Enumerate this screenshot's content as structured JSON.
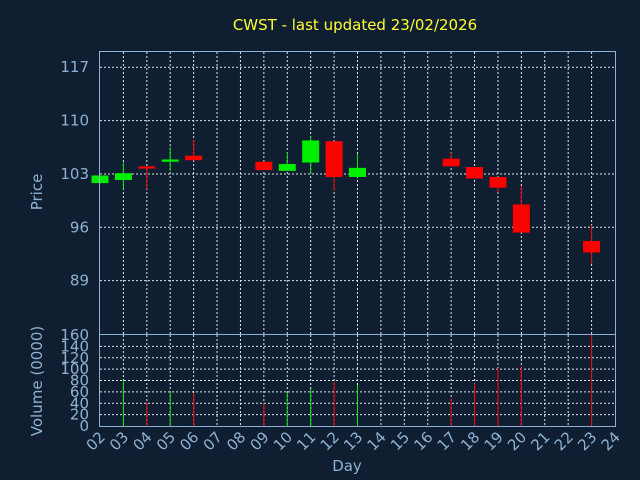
{
  "chart_data": {
    "type": "candlestick",
    "title": "CWST - last updated 23/02/2026",
    "colors": {
      "up": "#00ee00",
      "down": "#ff0000",
      "background": "#0f1e30",
      "text": "#8fb2d4",
      "title": "#ffff33",
      "grid": "#e0e6ee"
    },
    "price_panel": {
      "ylabel": "Price",
      "ylim": [
        82,
        119
      ],
      "yticks": [
        89,
        96,
        103,
        110,
        117
      ],
      "grid": true
    },
    "volume_panel": {
      "ylabel": "Volume (0000)",
      "ylim": [
        0,
        160
      ],
      "yticks": [
        0,
        20,
        40,
        60,
        80,
        100,
        120,
        140,
        160
      ],
      "grid": true
    },
    "xlabel": "Day",
    "x_ticks": [
      "02",
      "03",
      "04",
      "05",
      "06",
      "07",
      "08",
      "09",
      "10",
      "11",
      "12",
      "13",
      "14",
      "15",
      "16",
      "17",
      "18",
      "19",
      "20",
      "21",
      "22",
      "23",
      "24"
    ],
    "candles": [
      {
        "day": "02",
        "open": 101.8,
        "close": 102.8,
        "high": 102.8,
        "low": 101.8,
        "volume": 0
      },
      {
        "day": "03",
        "open": 102.2,
        "close": 103.1,
        "high": 104.5,
        "low": 101.0,
        "volume": 80
      },
      {
        "day": "04",
        "open": 104.0,
        "close": 103.7,
        "high": 104.0,
        "low": 101.0,
        "volume": 42
      },
      {
        "day": "05",
        "open": 104.6,
        "close": 104.9,
        "high": 106.5,
        "low": 103.4,
        "volume": 62
      },
      {
        "day": "06",
        "open": 105.4,
        "close": 104.8,
        "high": 107.5,
        "low": 104.8,
        "volume": 58
      },
      {
        "day": "09",
        "open": 104.6,
        "close": 103.5,
        "high": 104.6,
        "low": 103.5,
        "volume": 40
      },
      {
        "day": "10",
        "open": 103.4,
        "close": 104.3,
        "high": 105.8,
        "low": 103.4,
        "volume": 58
      },
      {
        "day": "11",
        "open": 104.5,
        "close": 107.4,
        "high": 108.0,
        "low": 103.0,
        "volume": 65
      },
      {
        "day": "12",
        "open": 107.3,
        "close": 102.6,
        "high": 107.3,
        "low": 100.8,
        "volume": 78
      },
      {
        "day": "13",
        "open": 102.6,
        "close": 103.8,
        "high": 105.6,
        "low": 102.6,
        "volume": 72
      },
      {
        "day": "17",
        "open": 105.0,
        "close": 104.0,
        "high": 105.8,
        "low": 104.0,
        "volume": 48
      },
      {
        "day": "18",
        "open": 103.9,
        "close": 102.4,
        "high": 103.9,
        "low": 102.4,
        "volume": 75
      },
      {
        "day": "19",
        "open": 102.6,
        "close": 101.2,
        "high": 102.6,
        "low": 100.6,
        "volume": 102
      },
      {
        "day": "20",
        "open": 99.0,
        "close": 95.3,
        "high": 101.4,
        "low": 95.3,
        "volume": 105
      },
      {
        "day": "23",
        "open": 94.2,
        "close": 92.7,
        "high": 96.3,
        "low": 91.2,
        "volume": 160
      }
    ]
  }
}
